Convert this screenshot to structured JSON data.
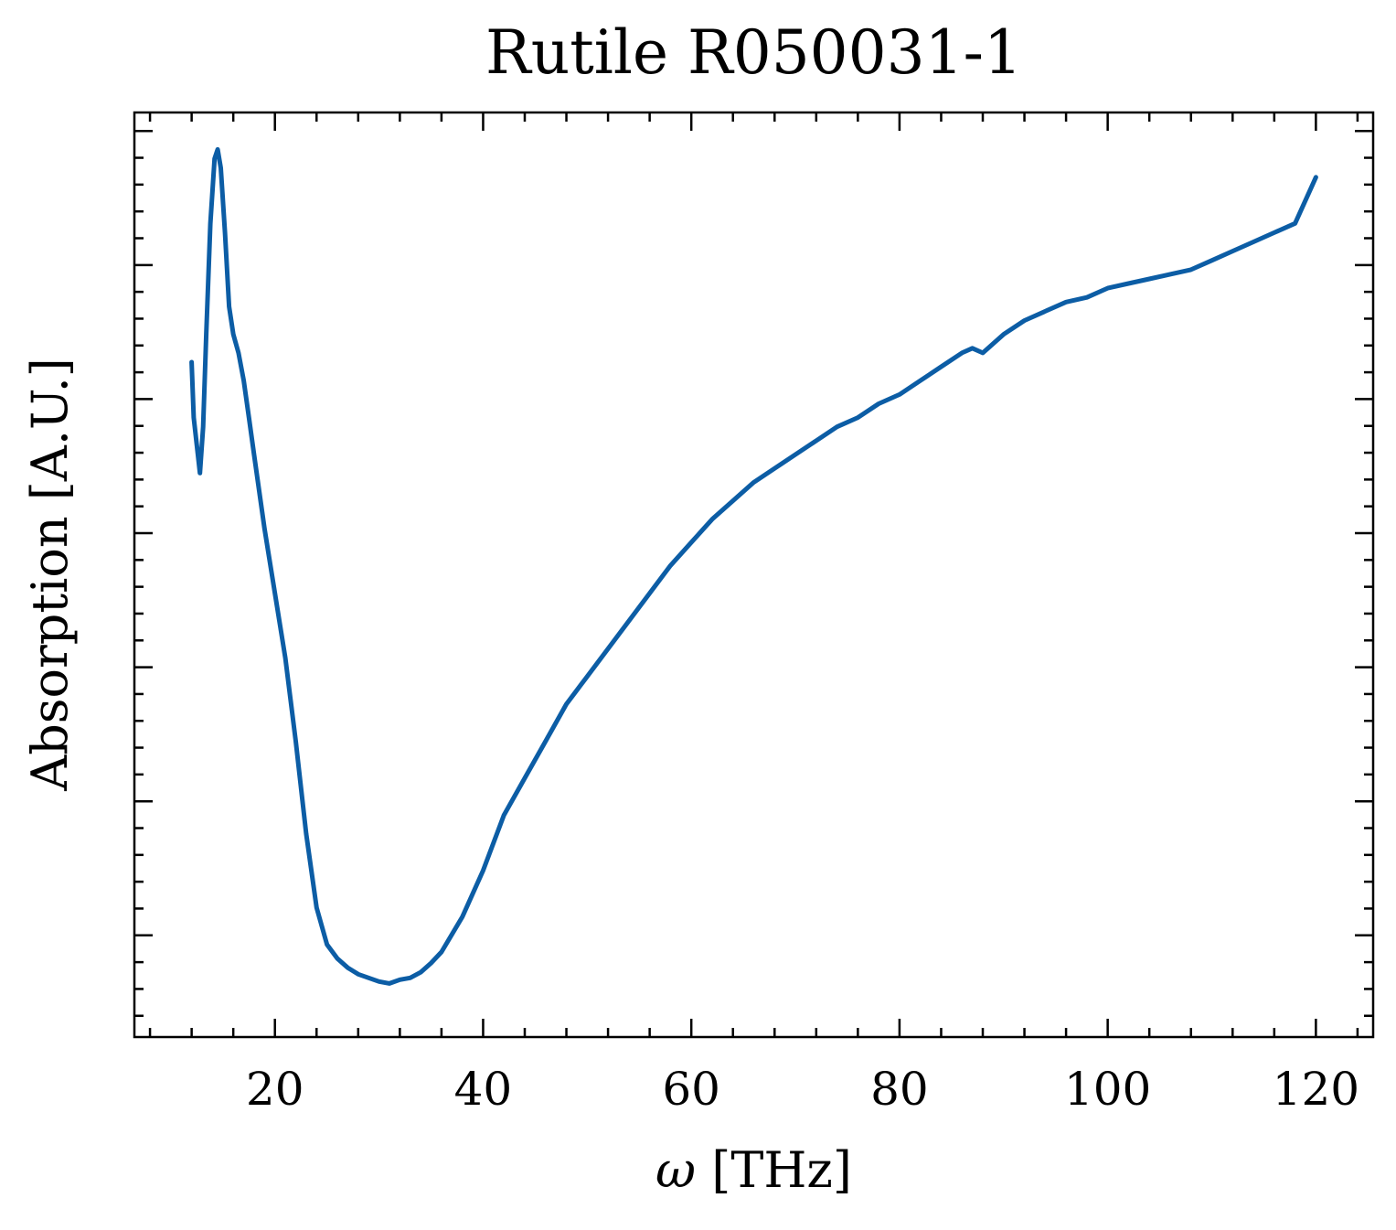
{
  "chart_data": {
    "type": "line",
    "title": "Rutile R050031-1",
    "xlabel": "[THz]",
    "xlabel_symbol": "ω",
    "ylabel": "Absorption [A.U.]",
    "xlim": [
      6.5,
      125.5
    ],
    "ylim": [
      0,
      1
    ],
    "x_ticks": [
      20,
      40,
      60,
      80,
      100,
      120
    ],
    "x_tick_labels": [
      "20",
      "40",
      "60",
      "80",
      "100",
      "120"
    ],
    "x_minor_step": 4,
    "y_ticks": [
      0.11,
      0.255,
      0.4,
      0.545,
      0.69,
      0.835,
      0.98
    ],
    "y_tick_labels": [],
    "y_minor_step": 0.029,
    "grid": false,
    "legend": "none",
    "line_color": "#0C5DA5",
    "series": [
      {
        "x": [
          12.0,
          12.2,
          12.5,
          12.8,
          13.1,
          13.4,
          13.8,
          14.2,
          14.5,
          14.8,
          15.2,
          15.6,
          16.0,
          16.5,
          17.0,
          17.5,
          18.0,
          18.5,
          19.0,
          20.0,
          21.0,
          22.0,
          23.0,
          24.0,
          25.0,
          26.0,
          27.0,
          28.0,
          29.0,
          30.0,
          31.0,
          32.0,
          33.0,
          34.0,
          35.0,
          36.0,
          38.0,
          40.0,
          42.0,
          44.0,
          46.0,
          48.0,
          50.0,
          52.0,
          54.0,
          56.0,
          58.0,
          60.0,
          62.0,
          64.0,
          66.0,
          68.0,
          70.0,
          72.0,
          74.0,
          76.0,
          78.0,
          80.0,
          82.0,
          84.0,
          86.0,
          87.0,
          88.0,
          89.0,
          90.0,
          92.0,
          94.0,
          96.0,
          98.0,
          100.0,
          102.0,
          104.0,
          106.0,
          108.0,
          110.0,
          112.0,
          114.0,
          116.0,
          118.0,
          120.0
        ],
        "y": [
          0.73,
          0.67,
          0.64,
          0.61,
          0.66,
          0.76,
          0.88,
          0.95,
          0.96,
          0.94,
          0.87,
          0.79,
          0.76,
          0.74,
          0.71,
          0.67,
          0.63,
          0.59,
          0.55,
          0.48,
          0.41,
          0.32,
          0.22,
          0.14,
          0.1,
          0.085,
          0.075,
          0.068,
          0.064,
          0.06,
          0.058,
          0.062,
          0.064,
          0.07,
          0.08,
          0.092,
          0.13,
          0.18,
          0.24,
          0.28,
          0.32,
          0.36,
          0.39,
          0.42,
          0.45,
          0.48,
          0.51,
          0.535,
          0.56,
          0.58,
          0.6,
          0.615,
          0.63,
          0.645,
          0.66,
          0.67,
          0.685,
          0.695,
          0.71,
          0.725,
          0.74,
          0.745,
          0.74,
          0.75,
          0.76,
          0.775,
          0.785,
          0.795,
          0.8,
          0.81,
          0.815,
          0.82,
          0.825,
          0.83,
          0.84,
          0.85,
          0.86,
          0.87,
          0.88,
          0.93
        ]
      }
    ]
  }
}
